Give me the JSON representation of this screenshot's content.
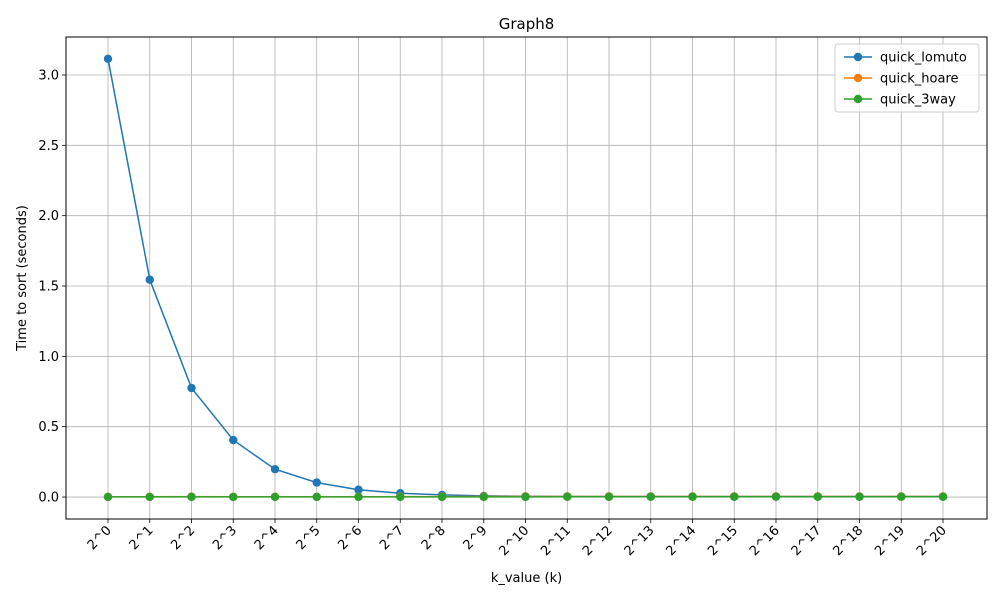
{
  "chart_data": {
    "type": "line",
    "title": "Graph8",
    "xlabel": "k_value (k)",
    "ylabel": "Time to sort (seconds)",
    "categories": [
      "2^0",
      "2^1",
      "2^2",
      "2^3",
      "2^4",
      "2^5",
      "2^6",
      "2^7",
      "2^8",
      "2^9",
      "2^10",
      "2^11",
      "2^12",
      "2^13",
      "2^14",
      "2^15",
      "2^16",
      "2^17",
      "2^18",
      "2^19",
      "2^20"
    ],
    "ylim": [
      -0.156,
      3.27
    ],
    "yticks": [
      0.0,
      0.5,
      1.0,
      1.5,
      2.0,
      2.5,
      3.0
    ],
    "ytick_labels": [
      "0.0",
      "0.5",
      "1.0",
      "1.5",
      "2.0",
      "2.5",
      "3.0"
    ],
    "grid": true,
    "legend_position": "top-right",
    "series": [
      {
        "name": "quick_lomuto",
        "color": "#1f77b4",
        "values": [
          3.115,
          1.545,
          0.775,
          0.405,
          0.198,
          0.103,
          0.052,
          0.027,
          0.015,
          0.008,
          0.005,
          0.004,
          0.004,
          0.004,
          0.004,
          0.004,
          0.004,
          0.004,
          0.004,
          0.004,
          0.004
        ]
      },
      {
        "name": "quick_hoare",
        "color": "#ff7f0e",
        "values": [
          0.002,
          0.002,
          0.003,
          0.002,
          0.002,
          0.002,
          0.002,
          0.003,
          0.003,
          0.004,
          0.004,
          0.004,
          0.004,
          0.004,
          0.004,
          0.004,
          0.004,
          0.004,
          0.004,
          0.004,
          0.004
        ]
      },
      {
        "name": "quick_3way",
        "color": "#2ca02c",
        "values": [
          0.001,
          0.001,
          0.001,
          0.001,
          0.001,
          0.001,
          0.001,
          0.001,
          0.001,
          0.001,
          0.001,
          0.002,
          0.002,
          0.002,
          0.002,
          0.002,
          0.002,
          0.002,
          0.002,
          0.002,
          0.002
        ]
      }
    ]
  }
}
